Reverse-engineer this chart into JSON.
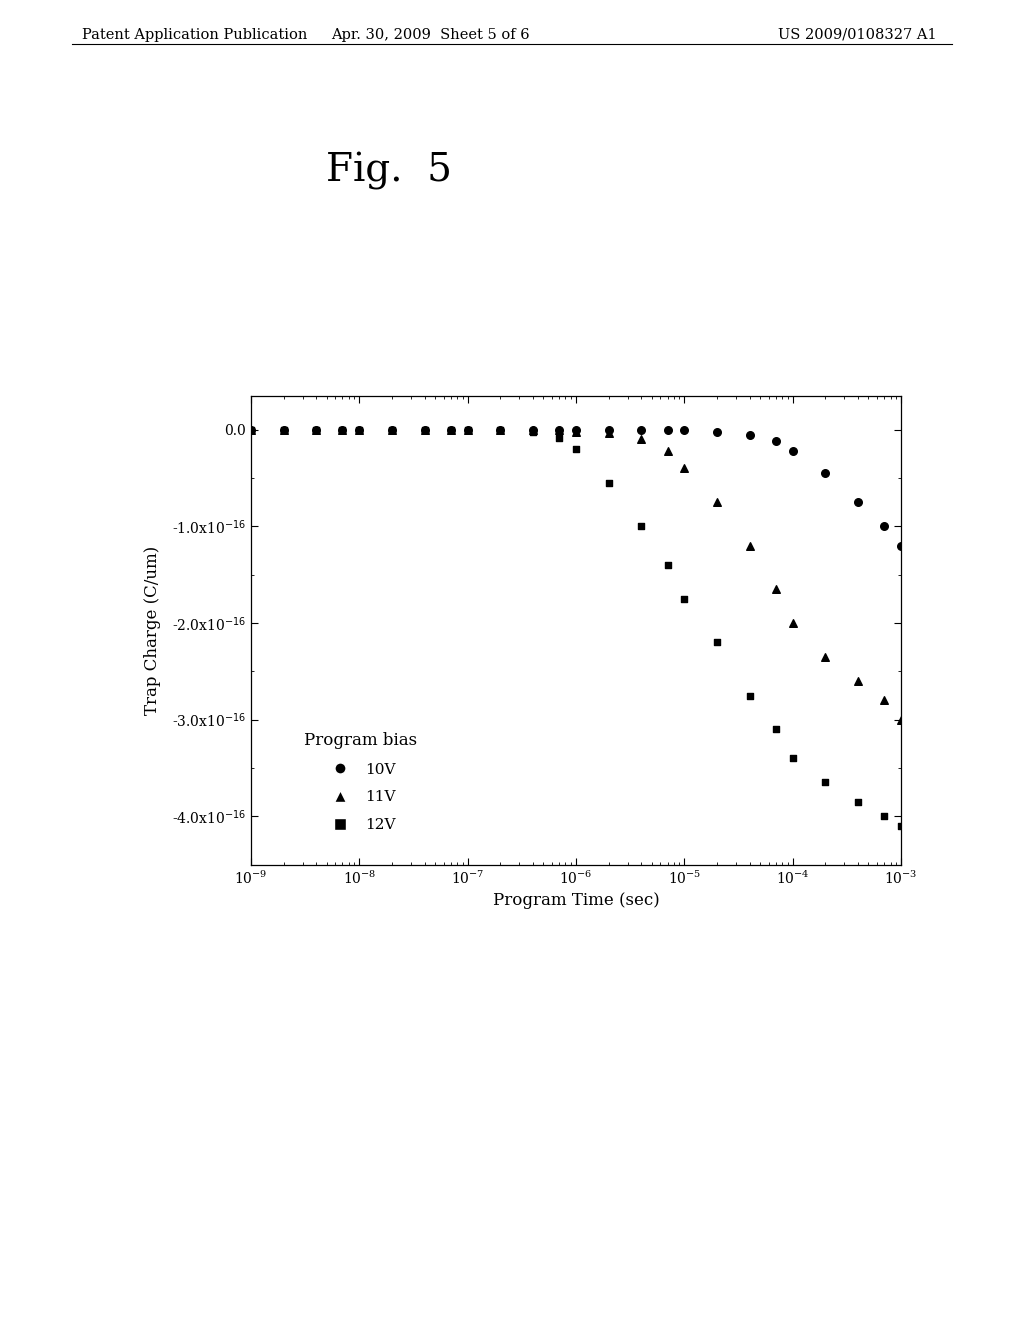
{
  "title": "Fig.  5",
  "xlabel": "Program Time (sec)",
  "ylabel": "Trap Charge (C/um)",
  "xlim_log": [
    -9,
    -3
  ],
  "ylim": [
    -4.5e-16,
    3.5e-17
  ],
  "yticks": [
    0.0,
    -1e-16,
    -2e-16,
    -3e-16,
    -4e-16
  ],
  "legend_title": "Program bias",
  "legend_entries": [
    "10V",
    "11V",
    "12V"
  ],
  "background_color": "#ffffff",
  "plot_bg_color": "#ffffff",
  "series_10V": {
    "x": [
      1e-09,
      2e-09,
      4e-09,
      7e-09,
      1e-08,
      2e-08,
      4e-08,
      7e-08,
      1e-07,
      2e-07,
      4e-07,
      7e-07,
      1e-06,
      2e-06,
      4e-06,
      7e-06,
      1e-05,
      2e-05,
      4e-05,
      7e-05,
      0.0001,
      0.0002,
      0.0004,
      0.0007,
      0.001
    ],
    "y": [
      0.0,
      0.0,
      0.0,
      0.0,
      0.0,
      0.0,
      0.0,
      0.0,
      0.0,
      0.0,
      0.0,
      0.0,
      0.0,
      0.0,
      0.0,
      0.0,
      0.0,
      -2e-18,
      -5e-18,
      -1.2e-17,
      -2.2e-17,
      -4.5e-17,
      -7.5e-17,
      -1e-16,
      -1.2e-16
    ]
  },
  "series_11V": {
    "x": [
      1e-09,
      2e-09,
      4e-09,
      7e-09,
      1e-08,
      2e-08,
      4e-08,
      7e-08,
      1e-07,
      2e-07,
      4e-07,
      7e-07,
      1e-06,
      2e-06,
      4e-06,
      7e-06,
      1e-05,
      2e-05,
      4e-05,
      7e-05,
      0.0001,
      0.0002,
      0.0004,
      0.0007,
      0.001
    ],
    "y": [
      0.0,
      0.0,
      0.0,
      0.0,
      0.0,
      0.0,
      0.0,
      0.0,
      0.0,
      0.0,
      0.0,
      0.0,
      -2e-18,
      -3e-18,
      -1e-17,
      -2.2e-17,
      -4e-17,
      -7.5e-17,
      -1.2e-16,
      -1.65e-16,
      -2e-16,
      -2.35e-16,
      -2.6e-16,
      -2.8e-16,
      -3e-16
    ]
  },
  "series_12V": {
    "x": [
      1e-09,
      2e-09,
      4e-09,
      7e-09,
      1e-08,
      2e-08,
      4e-08,
      7e-08,
      1e-07,
      2e-07,
      4e-07,
      7e-07,
      1e-06,
      2e-06,
      4e-06,
      7e-06,
      1e-05,
      2e-05,
      4e-05,
      7e-05,
      0.0001,
      0.0002,
      0.0004,
      0.0007,
      0.001
    ],
    "y": [
      0.0,
      0.0,
      0.0,
      0.0,
      0.0,
      0.0,
      0.0,
      0.0,
      0.0,
      0.0,
      -2e-18,
      -8e-18,
      -2e-17,
      -5.5e-17,
      -1e-16,
      -1.4e-16,
      -1.75e-16,
      -2.2e-16,
      -2.75e-16,
      -3.1e-16,
      -3.4e-16,
      -3.65e-16,
      -3.85e-16,
      -4e-16,
      -4.1e-16
    ]
  },
  "header_left": "Patent Application Publication",
  "header_center": "Apr. 30, 2009  Sheet 5 of 6",
  "header_right": "US 2009/0108327 A1"
}
